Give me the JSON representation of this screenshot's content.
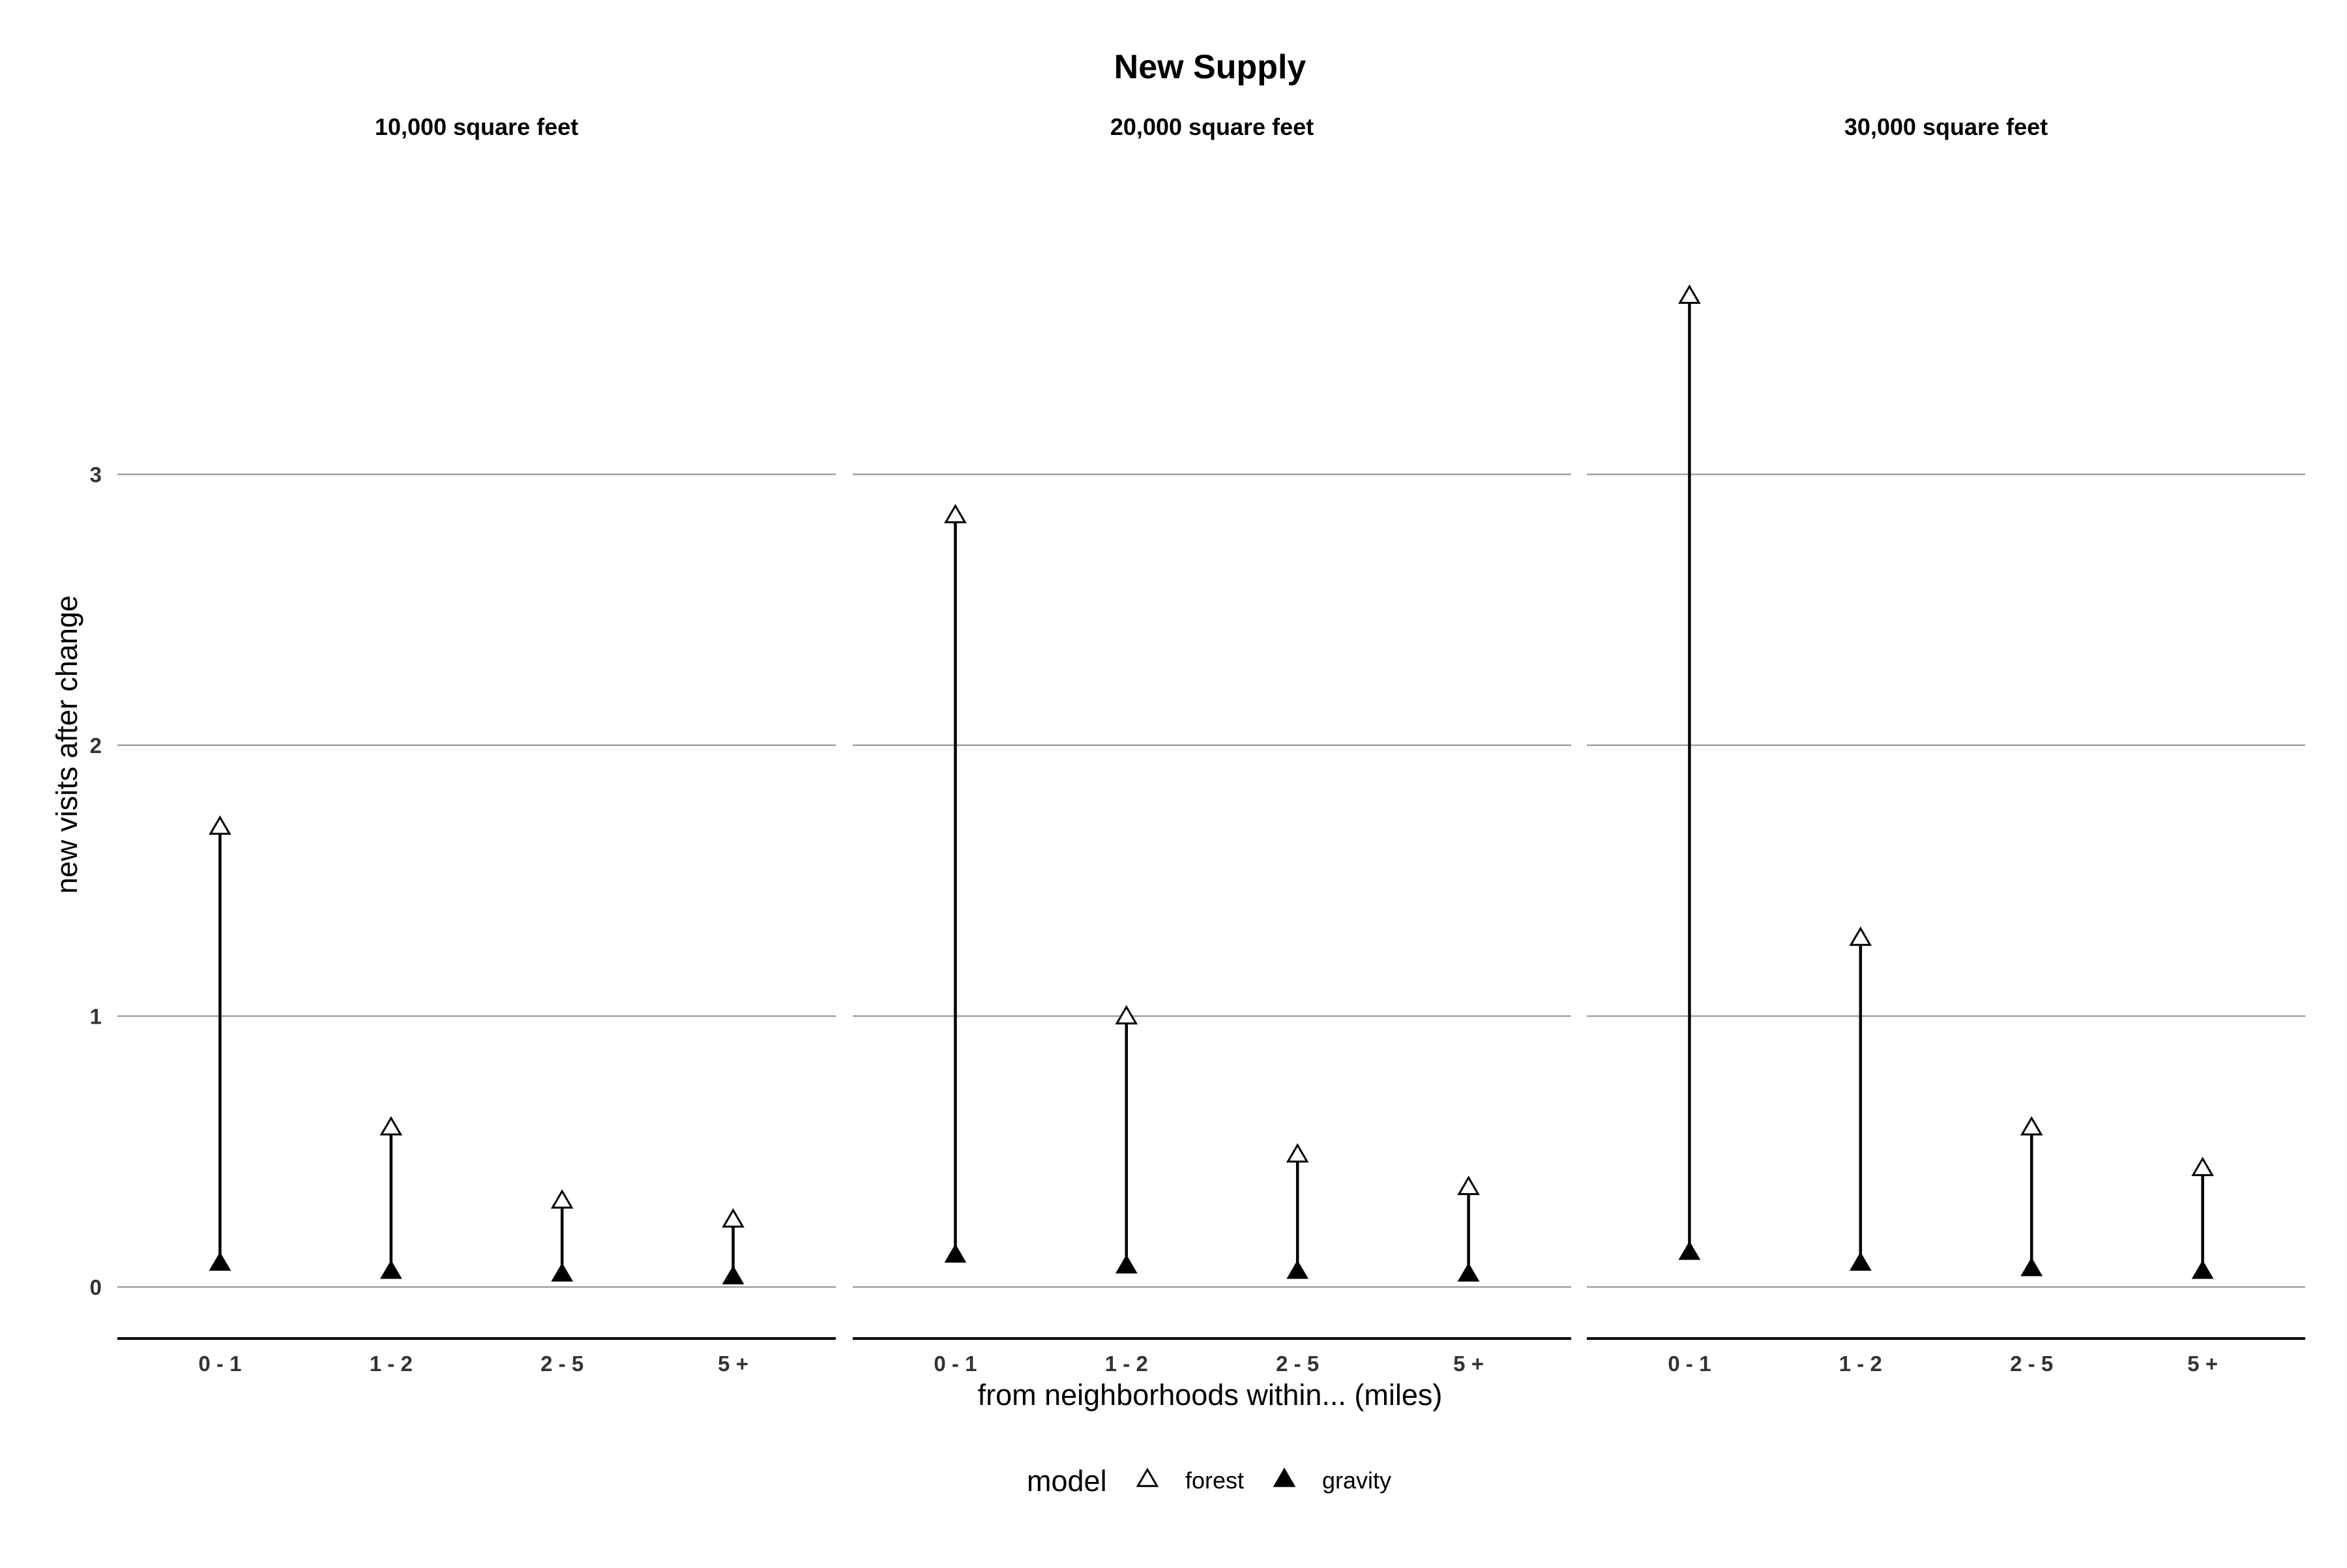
{
  "chart_data": {
    "type": "lollipop",
    "title": "New Supply",
    "xlabel": "from neighborhoods within... (miles)",
    "ylabel": "new visits after change",
    "categories": [
      "0 - 1",
      "1 - 2",
      "2 - 5",
      "5 +"
    ],
    "y_ticks": [
      0,
      1,
      2,
      3
    ],
    "ylim": [
      -0.2,
      4.1
    ],
    "grid": "horizontal major",
    "legend": {
      "title": "model",
      "position": "bottom",
      "entries": [
        {
          "label": "forest",
          "shape": "open-triangle"
        },
        {
          "label": "gravity",
          "shape": "filled-triangle"
        }
      ]
    },
    "panels": [
      {
        "facet": "10,000 square feet",
        "series": [
          {
            "name": "forest",
            "values": [
              1.7,
              0.59,
              0.32,
              0.25
            ]
          },
          {
            "name": "gravity",
            "values": [
              0.09,
              0.06,
              0.05,
              0.04
            ]
          }
        ]
      },
      {
        "facet": "20,000 square feet",
        "series": [
          {
            "name": "forest",
            "values": [
              2.85,
              1.0,
              0.49,
              0.37
            ]
          },
          {
            "name": "gravity",
            "values": [
              0.12,
              0.08,
              0.06,
              0.05
            ]
          }
        ]
      },
      {
        "facet": "30,000 square feet",
        "series": [
          {
            "name": "forest",
            "values": [
              3.66,
              1.29,
              0.59,
              0.44
            ]
          },
          {
            "name": "gravity",
            "values": [
              0.13,
              0.09,
              0.07,
              0.06
            ]
          }
        ]
      }
    ]
  }
}
